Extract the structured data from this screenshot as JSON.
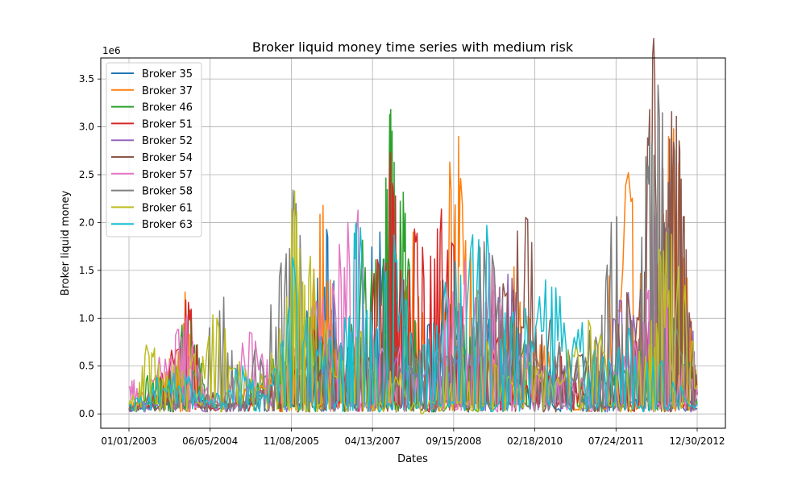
{
  "chart_data": {
    "type": "line",
    "title": "Broker liquid money time series with medium risk",
    "xlabel": "Dates",
    "ylabel": "Broker liquid money",
    "y_offset_label": "1e6",
    "x_tick_labels": [
      "01/01/2003",
      "06/05/2004",
      "11/08/2005",
      "04/13/2007",
      "09/15/2008",
      "02/18/2010",
      "07/24/2011",
      "12/30/2012"
    ],
    "y_tick_labels": [
      "0.0",
      "0.5",
      "1.0",
      "1.5",
      "2.0",
      "2.5",
      "3.0",
      "3.5"
    ],
    "y_ticks": [
      0,
      0.5,
      1.0,
      1.5,
      2.0,
      2.5,
      3.0,
      3.5
    ],
    "x_range": [
      "2003-01-01",
      "2012-12-30"
    ],
    "y_range_millions": [
      -0.15,
      3.72
    ],
    "grid": true,
    "legend_position": "upper-left",
    "series": [
      {
        "name": "Broker 35",
        "color": "#1f77b4",
        "points": [
          [
            "2003-01-01",
            0.05
          ],
          [
            "2003-03-01",
            0.12
          ],
          [
            "2003-07-01",
            0.2
          ],
          [
            "2003-10-01",
            0.1
          ],
          [
            "2004-03-01",
            0.25
          ],
          [
            "2004-07-01",
            0.08
          ],
          [
            "2005-01-01",
            0.15
          ],
          [
            "2005-06-01",
            0.3
          ],
          [
            "2005-12-01",
            0.6
          ],
          [
            "2006-04-01",
            1.1
          ],
          [
            "2006-07-01",
            1.85
          ],
          [
            "2006-10-01",
            0.4
          ],
          [
            "2007-02-01",
            0.8
          ],
          [
            "2007-06-01",
            1.9
          ],
          [
            "2007-10-01",
            0.5
          ],
          [
            "2008-03-01",
            0.7
          ],
          [
            "2008-08-01",
            1.2
          ],
          [
            "2009-01-01",
            0.4
          ],
          [
            "2009-06-01",
            0.9
          ],
          [
            "2009-12-01",
            0.3
          ],
          [
            "2010-06-01",
            0.5
          ],
          [
            "2010-12-01",
            0.2
          ],
          [
            "2011-06-01",
            0.4
          ],
          [
            "2011-12-01",
            0.15
          ],
          [
            "2012-06-01",
            0.2
          ],
          [
            "2012-12-30",
            0.05
          ]
        ]
      },
      {
        "name": "Broker 37",
        "color": "#ff7f0e",
        "points": [
          [
            "2003-01-01",
            0.1
          ],
          [
            "2003-06-01",
            0.2
          ],
          [
            "2003-11-01",
            0.5
          ],
          [
            "2004-01-01",
            1.06
          ],
          [
            "2004-04-01",
            0.1
          ],
          [
            "2004-10-01",
            0.2
          ],
          [
            "2005-05-01",
            0.3
          ],
          [
            "2005-11-01",
            0.5
          ],
          [
            "2006-03-01",
            0.7
          ],
          [
            "2006-06-01",
            2.18
          ],
          [
            "2006-09-01",
            0.3
          ],
          [
            "2007-03-01",
            0.5
          ],
          [
            "2007-08-01",
            0.8
          ],
          [
            "2008-01-01",
            1.9
          ],
          [
            "2008-05-01",
            0.4
          ],
          [
            "2008-09-01",
            2.34
          ],
          [
            "2008-11-01",
            2.46
          ],
          [
            "2009-04-01",
            0.6
          ],
          [
            "2009-09-01",
            1.4
          ],
          [
            "2010-03-01",
            0.7
          ],
          [
            "2010-09-01",
            0.4
          ],
          [
            "2011-03-01",
            0.6
          ],
          [
            "2011-11-01",
            2.22
          ],
          [
            "2012-03-01",
            0.5
          ],
          [
            "2012-08-01",
            2.98
          ],
          [
            "2012-12-30",
            0.3
          ]
        ]
      },
      {
        "name": "Broker 46",
        "color": "#2ca02c",
        "points": [
          [
            "2003-01-01",
            0.08
          ],
          [
            "2003-05-01",
            0.4
          ],
          [
            "2003-09-01",
            0.3
          ],
          [
            "2004-02-01",
            1.06
          ],
          [
            "2004-06-01",
            0.1
          ],
          [
            "2005-01-01",
            0.2
          ],
          [
            "2005-06-01",
            0.4
          ],
          [
            "2005-11-01",
            0.7
          ],
          [
            "2006-04-01",
            0.9
          ],
          [
            "2006-10-01",
            0.5
          ],
          [
            "2007-02-01",
            1.5
          ],
          [
            "2007-06-01",
            1.4
          ],
          [
            "2007-08-01",
            2.74
          ],
          [
            "2007-09-01",
            2.63
          ],
          [
            "2007-12-01",
            1.62
          ],
          [
            "2008-04-01",
            0.6
          ],
          [
            "2008-10-01",
            1.1
          ],
          [
            "2009-04-01",
            0.5
          ],
          [
            "2009-10-01",
            0.9
          ],
          [
            "2010-04-01",
            0.4
          ],
          [
            "2010-10-01",
            0.3
          ],
          [
            "2011-04-01",
            0.5
          ],
          [
            "2011-10-01",
            0.4
          ],
          [
            "2012-04-01",
            0.6
          ],
          [
            "2012-07-01",
            1.87
          ],
          [
            "2012-12-30",
            0.1
          ]
        ]
      },
      {
        "name": "Broker 51",
        "color": "#d62728",
        "points": [
          [
            "2003-01-01",
            0.05
          ],
          [
            "2003-06-01",
            0.15
          ],
          [
            "2004-01-01",
            1.19
          ],
          [
            "2004-05-01",
            0.05
          ],
          [
            "2005-01-01",
            0.1
          ],
          [
            "2005-07-01",
            0.3
          ],
          [
            "2006-01-01",
            0.4
          ],
          [
            "2006-05-01",
            0.9
          ],
          [
            "2006-10-01",
            0.6
          ],
          [
            "2007-03-01",
            0.8
          ],
          [
            "2007-08-01",
            2.4
          ],
          [
            "2007-11-01",
            1.4
          ],
          [
            "2008-03-01",
            1.74
          ],
          [
            "2008-07-01",
            2.14
          ],
          [
            "2009-01-01",
            0.5
          ],
          [
            "2009-07-01",
            0.8
          ],
          [
            "2010-01-01",
            0.3
          ],
          [
            "2010-07-01",
            0.6
          ],
          [
            "2011-01-01",
            0.2
          ],
          [
            "2011-07-01",
            0.4
          ],
          [
            "2012-01-01",
            1.05
          ],
          [
            "2012-06-01",
            0.4
          ],
          [
            "2012-12-30",
            0.1
          ]
        ]
      },
      {
        "name": "Broker 52",
        "color": "#9467bd",
        "points": [
          [
            "2003-01-01",
            0.03
          ],
          [
            "2003-07-01",
            0.1
          ],
          [
            "2004-01-01",
            0.3
          ],
          [
            "2004-07-01",
            0.05
          ],
          [
            "2005-03-01",
            0.2
          ],
          [
            "2005-09-01",
            0.3
          ],
          [
            "2006-03-01",
            0.5
          ],
          [
            "2006-09-01",
            0.4
          ],
          [
            "2007-03-01",
            0.6
          ],
          [
            "2007-09-01",
            0.5
          ],
          [
            "2008-03-01",
            0.4
          ],
          [
            "2008-09-01",
            0.5
          ],
          [
            "2009-03-01",
            0.6
          ],
          [
            "2009-09-01",
            1.46
          ],
          [
            "2010-03-01",
            0.4
          ],
          [
            "2010-09-01",
            0.5
          ],
          [
            "2011-03-01",
            0.3
          ],
          [
            "2011-09-01",
            1.18
          ],
          [
            "2012-02-01",
            0.6
          ],
          [
            "2012-07-01",
            1.77
          ],
          [
            "2012-12-01",
            0.79
          ],
          [
            "2012-12-30",
            0.2
          ]
        ]
      },
      {
        "name": "Broker 54",
        "color": "#8c564b",
        "points": [
          [
            "2003-01-01",
            0.04
          ],
          [
            "2003-08-01",
            0.15
          ],
          [
            "2004-02-01",
            0.3
          ],
          [
            "2004-08-01",
            0.1
          ],
          [
            "2005-02-01",
            0.15
          ],
          [
            "2005-08-01",
            0.3
          ],
          [
            "2006-02-01",
            0.5
          ],
          [
            "2006-08-01",
            0.4
          ],
          [
            "2007-02-01",
            0.6
          ],
          [
            "2007-08-01",
            1.45
          ],
          [
            "2008-02-01",
            0.5
          ],
          [
            "2008-08-01",
            0.6
          ],
          [
            "2009-02-01",
            0.7
          ],
          [
            "2009-08-01",
            1.36
          ],
          [
            "2010-02-01",
            1.79
          ],
          [
            "2010-08-01",
            0.7
          ],
          [
            "2011-02-01",
            0.5
          ],
          [
            "2011-08-01",
            0.8
          ],
          [
            "2012-01-01",
            1.3
          ],
          [
            "2012-04-01",
            3.55
          ],
          [
            "2012-06-01",
            2.0
          ],
          [
            "2012-08-01",
            2.84
          ],
          [
            "2012-10-01",
            2.06
          ],
          [
            "2012-12-30",
            0.2
          ]
        ]
      },
      {
        "name": "Broker 57",
        "color": "#e377c2",
        "points": [
          [
            "2003-01-01",
            0.27
          ],
          [
            "2003-04-01",
            0.2
          ],
          [
            "2003-10-01",
            0.6
          ],
          [
            "2004-01-01",
            0.96
          ],
          [
            "2004-04-01",
            0.3
          ],
          [
            "2004-08-01",
            0.1
          ],
          [
            "2005-03-01",
            0.84
          ],
          [
            "2005-08-01",
            0.3
          ],
          [
            "2006-02-01",
            0.7
          ],
          [
            "2006-08-01",
            1.36
          ],
          [
            "2007-01-01",
            1.88
          ],
          [
            "2007-06-01",
            0.6
          ],
          [
            "2007-12-01",
            0.5
          ],
          [
            "2008-06-01",
            0.7
          ],
          [
            "2008-12-01",
            1.6
          ],
          [
            "2009-06-01",
            1.55
          ],
          [
            "2009-12-01",
            0.6
          ],
          [
            "2010-06-01",
            0.4
          ],
          [
            "2011-01-01",
            0.3
          ],
          [
            "2011-07-01",
            0.5
          ],
          [
            "2012-01-01",
            0.6
          ],
          [
            "2012-04-01",
            2.07
          ],
          [
            "2012-08-01",
            0.7
          ],
          [
            "2012-12-30",
            0.28
          ]
        ]
      },
      {
        "name": "Broker 58",
        "color": "#7f7f7f",
        "points": [
          [
            "2003-01-01",
            0.06
          ],
          [
            "2003-09-01",
            0.2
          ],
          [
            "2004-03-01",
            0.4
          ],
          [
            "2004-09-01",
            1.22
          ],
          [
            "2005-01-01",
            0.2
          ],
          [
            "2005-07-01",
            1.14
          ],
          [
            "2005-12-01",
            2.05
          ],
          [
            "2006-04-01",
            0.5
          ],
          [
            "2006-10-01",
            0.7
          ],
          [
            "2007-04-01",
            0.6
          ],
          [
            "2007-10-01",
            0.5
          ],
          [
            "2008-04-01",
            0.6
          ],
          [
            "2008-10-01",
            0.7
          ],
          [
            "2009-04-01",
            1.8
          ],
          [
            "2009-10-01",
            0.6
          ],
          [
            "2010-04-01",
            0.5
          ],
          [
            "2010-10-01",
            0.6
          ],
          [
            "2011-04-01",
            0.7
          ],
          [
            "2011-08-01",
            2.06
          ],
          [
            "2011-12-01",
            0.5
          ],
          [
            "2012-03-01",
            2.95
          ],
          [
            "2012-05-01",
            3.1
          ],
          [
            "2012-08-01",
            1.0
          ],
          [
            "2012-12-30",
            0.15
          ]
        ]
      },
      {
        "name": "Broker 61",
        "color": "#bcbd22",
        "points": [
          [
            "2003-01-01",
            0.1
          ],
          [
            "2003-05-01",
            0.67
          ],
          [
            "2003-09-01",
            0.4
          ],
          [
            "2004-02-01",
            0.5
          ],
          [
            "2004-08-01",
            0.9
          ],
          [
            "2005-02-01",
            0.3
          ],
          [
            "2005-08-01",
            0.5
          ],
          [
            "2005-12-01",
            2.33
          ],
          [
            "2006-03-01",
            1.41
          ],
          [
            "2006-08-01",
            0.5
          ],
          [
            "2007-01-01",
            0.8
          ],
          [
            "2007-05-01",
            0.6
          ],
          [
            "2007-10-01",
            0.3
          ],
          [
            "2008-03-01",
            0.0
          ],
          [
            "2008-08-01",
            0.5
          ],
          [
            "2009-02-01",
            0.7
          ],
          [
            "2009-08-01",
            0.4
          ],
          [
            "2010-02-01",
            0.5
          ],
          [
            "2010-08-01",
            0.3
          ],
          [
            "2011-02-01",
            0.98
          ],
          [
            "2011-08-01",
            0.4
          ],
          [
            "2012-02-01",
            0.6
          ],
          [
            "2012-05-01",
            1.72
          ],
          [
            "2012-09-01",
            1.54
          ],
          [
            "2012-12-30",
            0.3
          ]
        ]
      },
      {
        "name": "Broker 63",
        "color": "#17becf",
        "points": [
          [
            "2003-01-01",
            0.08
          ],
          [
            "2003-06-01",
            0.3
          ],
          [
            "2004-01-01",
            0.4
          ],
          [
            "2004-06-01",
            0.1
          ],
          [
            "2005-01-01",
            0.5
          ],
          [
            "2005-06-01",
            0.2
          ],
          [
            "2005-12-01",
            1.5
          ],
          [
            "2006-05-01",
            0.6
          ],
          [
            "2006-11-01",
            0.8
          ],
          [
            "2007-01-01",
            2.0
          ],
          [
            "2007-05-01",
            0.7
          ],
          [
            "2007-09-01",
            1.87
          ],
          [
            "2008-01-01",
            0.6
          ],
          [
            "2008-06-01",
            0.92
          ],
          [
            "2008-11-01",
            1.45
          ],
          [
            "2009-05-01",
            1.66
          ],
          [
            "2009-11-01",
            0.9
          ],
          [
            "2010-05-01",
            1.4
          ],
          [
            "2010-11-01",
            0.8
          ],
          [
            "2011-05-01",
            0.6
          ],
          [
            "2011-11-01",
            0.7
          ],
          [
            "2012-05-01",
            0.5
          ],
          [
            "2012-12-30",
            0.1
          ]
        ]
      }
    ]
  }
}
